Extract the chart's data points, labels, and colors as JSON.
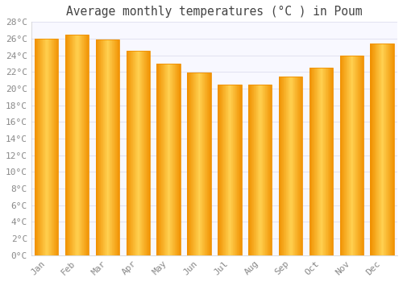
{
  "title": "Average monthly temperatures (°C ) in Poum",
  "months": [
    "Jan",
    "Feb",
    "Mar",
    "Apr",
    "May",
    "Jun",
    "Jul",
    "Aug",
    "Sep",
    "Oct",
    "Nov",
    "Dec"
  ],
  "values": [
    26.0,
    26.5,
    25.9,
    24.5,
    23.0,
    21.9,
    20.5,
    20.5,
    21.5,
    22.5,
    24.0,
    25.4
  ],
  "bar_color_center": "#FFD050",
  "bar_color_edge": "#F09000",
  "background_color": "#FFFFFF",
  "plot_bg_color": "#F8F8FF",
  "grid_color": "#DDDDEE",
  "tick_label_color": "#888888",
  "title_color": "#444444",
  "ylim": [
    0,
    28
  ],
  "ytick_step": 2,
  "title_fontsize": 10.5,
  "tick_fontsize": 8
}
